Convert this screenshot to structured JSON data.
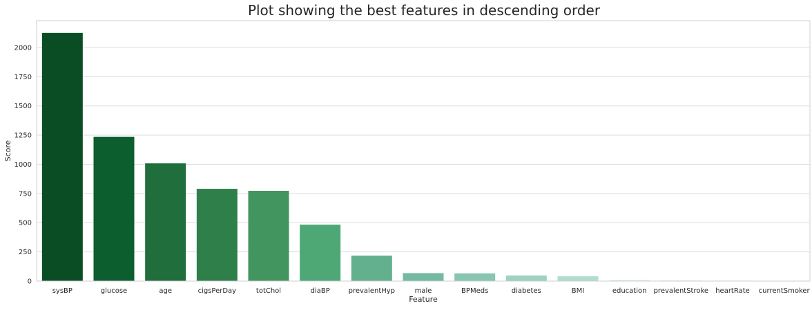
{
  "chart_data": {
    "type": "bar",
    "title": "Plot showing the best features in descending order",
    "xlabel": "Feature",
    "ylabel": "Score",
    "categories": [
      "sysBP",
      "glucose",
      "age",
      "cigsPerDay",
      "totChol",
      "diaBP",
      "prevalentHyp",
      "male",
      "BPMeds",
      "diabetes",
      "BMI",
      "education",
      "prevalentStroke",
      "heartRate",
      "currentSmoker"
    ],
    "values": [
      2125,
      1235,
      1008,
      790,
      773,
      483,
      218,
      68,
      66,
      48,
      41,
      9,
      6,
      4,
      1
    ],
    "ylim": [
      0,
      2230
    ],
    "yticks": [
      0,
      250,
      500,
      750,
      1000,
      1250,
      1500,
      1750,
      2000
    ],
    "grid": "horizontal",
    "legend": "none",
    "colors": [
      "#0a4d24",
      "#0c5e2e",
      "#1f6e3c",
      "#2e7f49",
      "#42955f",
      "#4ea876",
      "#62b08d",
      "#73baa1",
      "#88c6b2",
      "#9dd2c0",
      "#b2dccf",
      "#d5ece3",
      "#e8f5f0",
      "#f2faf6",
      "#f7fcfa"
    ]
  }
}
